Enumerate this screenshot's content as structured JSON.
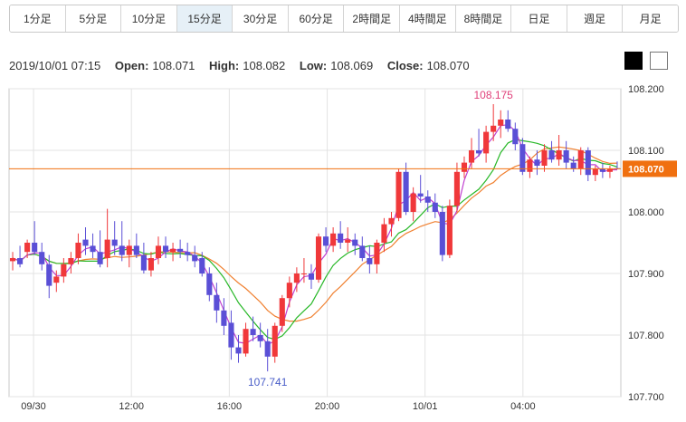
{
  "tabs": [
    {
      "label": "1分足",
      "active": false
    },
    {
      "label": "5分足",
      "active": false
    },
    {
      "label": "10分足",
      "active": false
    },
    {
      "label": "15分足",
      "active": true
    },
    {
      "label": "30分足",
      "active": false
    },
    {
      "label": "60分足",
      "active": false
    },
    {
      "label": "2時間足",
      "active": false
    },
    {
      "label": "4時間足",
      "active": false
    },
    {
      "label": "8時間足",
      "active": false
    },
    {
      "label": "日足",
      "active": false
    },
    {
      "label": "週足",
      "active": false
    },
    {
      "label": "月足",
      "active": false
    }
  ],
  "info": {
    "datetime": "2019/10/01 07:15",
    "open_label": "Open:",
    "open": "108.071",
    "high_label": "High:",
    "high": "108.082",
    "low_label": "Low:",
    "low": "108.069",
    "close_label": "Close:",
    "close": "108.070"
  },
  "theme_buttons": {
    "dark": "black-theme-icon",
    "light": "white-theme-icon"
  },
  "chart_data": {
    "type": "candlestick",
    "ylim": [
      107.7,
      108.2
    ],
    "y_ticks": [
      "108.200",
      "108.100",
      "108.000",
      "107.900",
      "107.800",
      "107.700"
    ],
    "x_ticks": [
      "09/30",
      "12:00",
      "16:00",
      "20:00",
      "10/01",
      "04:00"
    ],
    "grid": true,
    "annotations": {
      "max": "108.175",
      "min": "107.741"
    },
    "current_price": "108.070",
    "colors": {
      "up": "#f0383a",
      "down": "#5a4fd6",
      "ma_short": "#c040d0",
      "ma_mid": "#28b828",
      "ma_long": "#f08030",
      "price_line": "#f07010"
    },
    "candles": [
      [
        107.92,
        107.935,
        107.905,
        107.925
      ],
      [
        107.925,
        107.945,
        107.91,
        107.915
      ],
      [
        107.935,
        107.955,
        107.925,
        107.95
      ],
      [
        107.95,
        107.985,
        107.93,
        107.935
      ],
      [
        107.935,
        107.95,
        107.905,
        107.915
      ],
      [
        107.915,
        107.93,
        107.86,
        107.88
      ],
      [
        107.885,
        107.905,
        107.87,
        107.895
      ],
      [
        107.895,
        107.925,
        107.885,
        107.915
      ],
      [
        107.915,
        107.935,
        107.9,
        107.925
      ],
      [
        107.925,
        107.965,
        107.915,
        107.95
      ],
      [
        107.955,
        107.975,
        107.93,
        107.945
      ],
      [
        107.945,
        107.965,
        107.925,
        107.935
      ],
      [
        107.935,
        107.97,
        107.91,
        107.915
      ],
      [
        107.925,
        108.005,
        107.91,
        107.955
      ],
      [
        107.955,
        107.985,
        107.93,
        107.945
      ],
      [
        107.945,
        107.985,
        107.92,
        107.93
      ],
      [
        107.93,
        107.955,
        107.91,
        107.945
      ],
      [
        107.945,
        107.965,
        107.925,
        107.93
      ],
      [
        107.93,
        107.95,
        107.9,
        107.905
      ],
      [
        107.905,
        107.935,
        107.895,
        107.925
      ],
      [
        107.925,
        107.96,
        107.915,
        107.945
      ],
      [
        107.945,
        107.96,
        107.925,
        107.935
      ],
      [
        107.935,
        107.95,
        107.92,
        107.94
      ],
      [
        107.94,
        107.955,
        107.925,
        107.935
      ],
      [
        107.935,
        107.95,
        107.92,
        107.93
      ],
      [
        107.93,
        107.945,
        107.91,
        107.92
      ],
      [
        107.925,
        107.935,
        107.895,
        107.9
      ],
      [
        107.9,
        107.91,
        107.855,
        107.865
      ],
      [
        107.865,
        107.885,
        107.82,
        107.84
      ],
      [
        107.84,
        107.86,
        107.8,
        107.815
      ],
      [
        107.82,
        107.84,
        107.76,
        107.78
      ],
      [
        107.78,
        107.8,
        107.755,
        107.77
      ],
      [
        107.77,
        107.82,
        107.765,
        107.81
      ],
      [
        107.81,
        107.83,
        107.79,
        107.8
      ],
      [
        107.8,
        107.82,
        107.78,
        107.79
      ],
      [
        107.79,
        107.81,
        107.741,
        107.765
      ],
      [
        107.765,
        107.82,
        107.755,
        107.815
      ],
      [
        107.815,
        107.865,
        107.805,
        107.86
      ],
      [
        107.86,
        107.895,
        107.845,
        107.885
      ],
      [
        107.885,
        107.91,
        107.87,
        107.9
      ],
      [
        107.9,
        107.925,
        107.885,
        107.9
      ],
      [
        107.9,
        107.915,
        107.875,
        107.89
      ],
      [
        107.89,
        107.965,
        107.885,
        107.96
      ],
      [
        107.96,
        107.975,
        107.935,
        107.945
      ],
      [
        107.945,
        107.975,
        107.935,
        107.965
      ],
      [
        107.965,
        107.985,
        107.94,
        107.95
      ],
      [
        107.95,
        107.975,
        107.935,
        107.955
      ],
      [
        107.955,
        107.965,
        107.93,
        107.945
      ],
      [
        107.945,
        107.96,
        107.92,
        107.925
      ],
      [
        107.925,
        107.945,
        107.9,
        107.915
      ],
      [
        107.915,
        107.955,
        107.9,
        107.95
      ],
      [
        107.95,
        107.99,
        107.935,
        107.98
      ],
      [
        107.98,
        108.0,
        107.96,
        107.99
      ],
      [
        107.99,
        108.07,
        107.985,
        108.065
      ],
      [
        108.065,
        108.08,
        107.995,
        108.0
      ],
      [
        108.0,
        108.04,
        107.985,
        108.03
      ],
      [
        108.03,
        108.06,
        108.015,
        108.025
      ],
      [
        108.025,
        108.035,
        108.0,
        108.015
      ],
      [
        108.015,
        108.03,
        107.99,
        108.0
      ],
      [
        108.0,
        108.01,
        107.92,
        107.93
      ],
      [
        107.93,
        108.02,
        107.925,
        108.01
      ],
      [
        108.01,
        108.08,
        108.0,
        108.065
      ],
      [
        108.065,
        108.09,
        108.055,
        108.08
      ],
      [
        108.08,
        108.12,
        108.07,
        108.1
      ],
      [
        108.1,
        108.135,
        108.09,
        108.095
      ],
      [
        108.095,
        108.14,
        108.08,
        108.13
      ],
      [
        108.13,
        108.175,
        108.115,
        108.14
      ],
      [
        108.14,
        108.165,
        108.12,
        108.15
      ],
      [
        108.15,
        108.165,
        108.13,
        108.135
      ],
      [
        108.135,
        108.145,
        108.1,
        108.11
      ],
      [
        108.11,
        108.12,
        108.06,
        108.065
      ],
      [
        108.065,
        108.09,
        108.055,
        108.085
      ],
      [
        108.085,
        108.1,
        108.06,
        108.075
      ],
      [
        108.075,
        108.11,
        108.065,
        108.1
      ],
      [
        108.1,
        108.115,
        108.08,
        108.085
      ],
      [
        108.085,
        108.125,
        108.075,
        108.1
      ],
      [
        108.1,
        108.115,
        108.07,
        108.08
      ],
      [
        108.08,
        108.09,
        108.065,
        108.07
      ],
      [
        108.07,
        108.105,
        108.06,
        108.1
      ],
      [
        108.1,
        108.105,
        108.05,
        108.06
      ],
      [
        108.06,
        108.075,
        108.05,
        108.07
      ],
      [
        108.07,
        108.08,
        108.055,
        108.065
      ],
      [
        108.065,
        108.075,
        108.055,
        108.07
      ],
      [
        108.071,
        108.082,
        108.069,
        108.07
      ]
    ]
  }
}
